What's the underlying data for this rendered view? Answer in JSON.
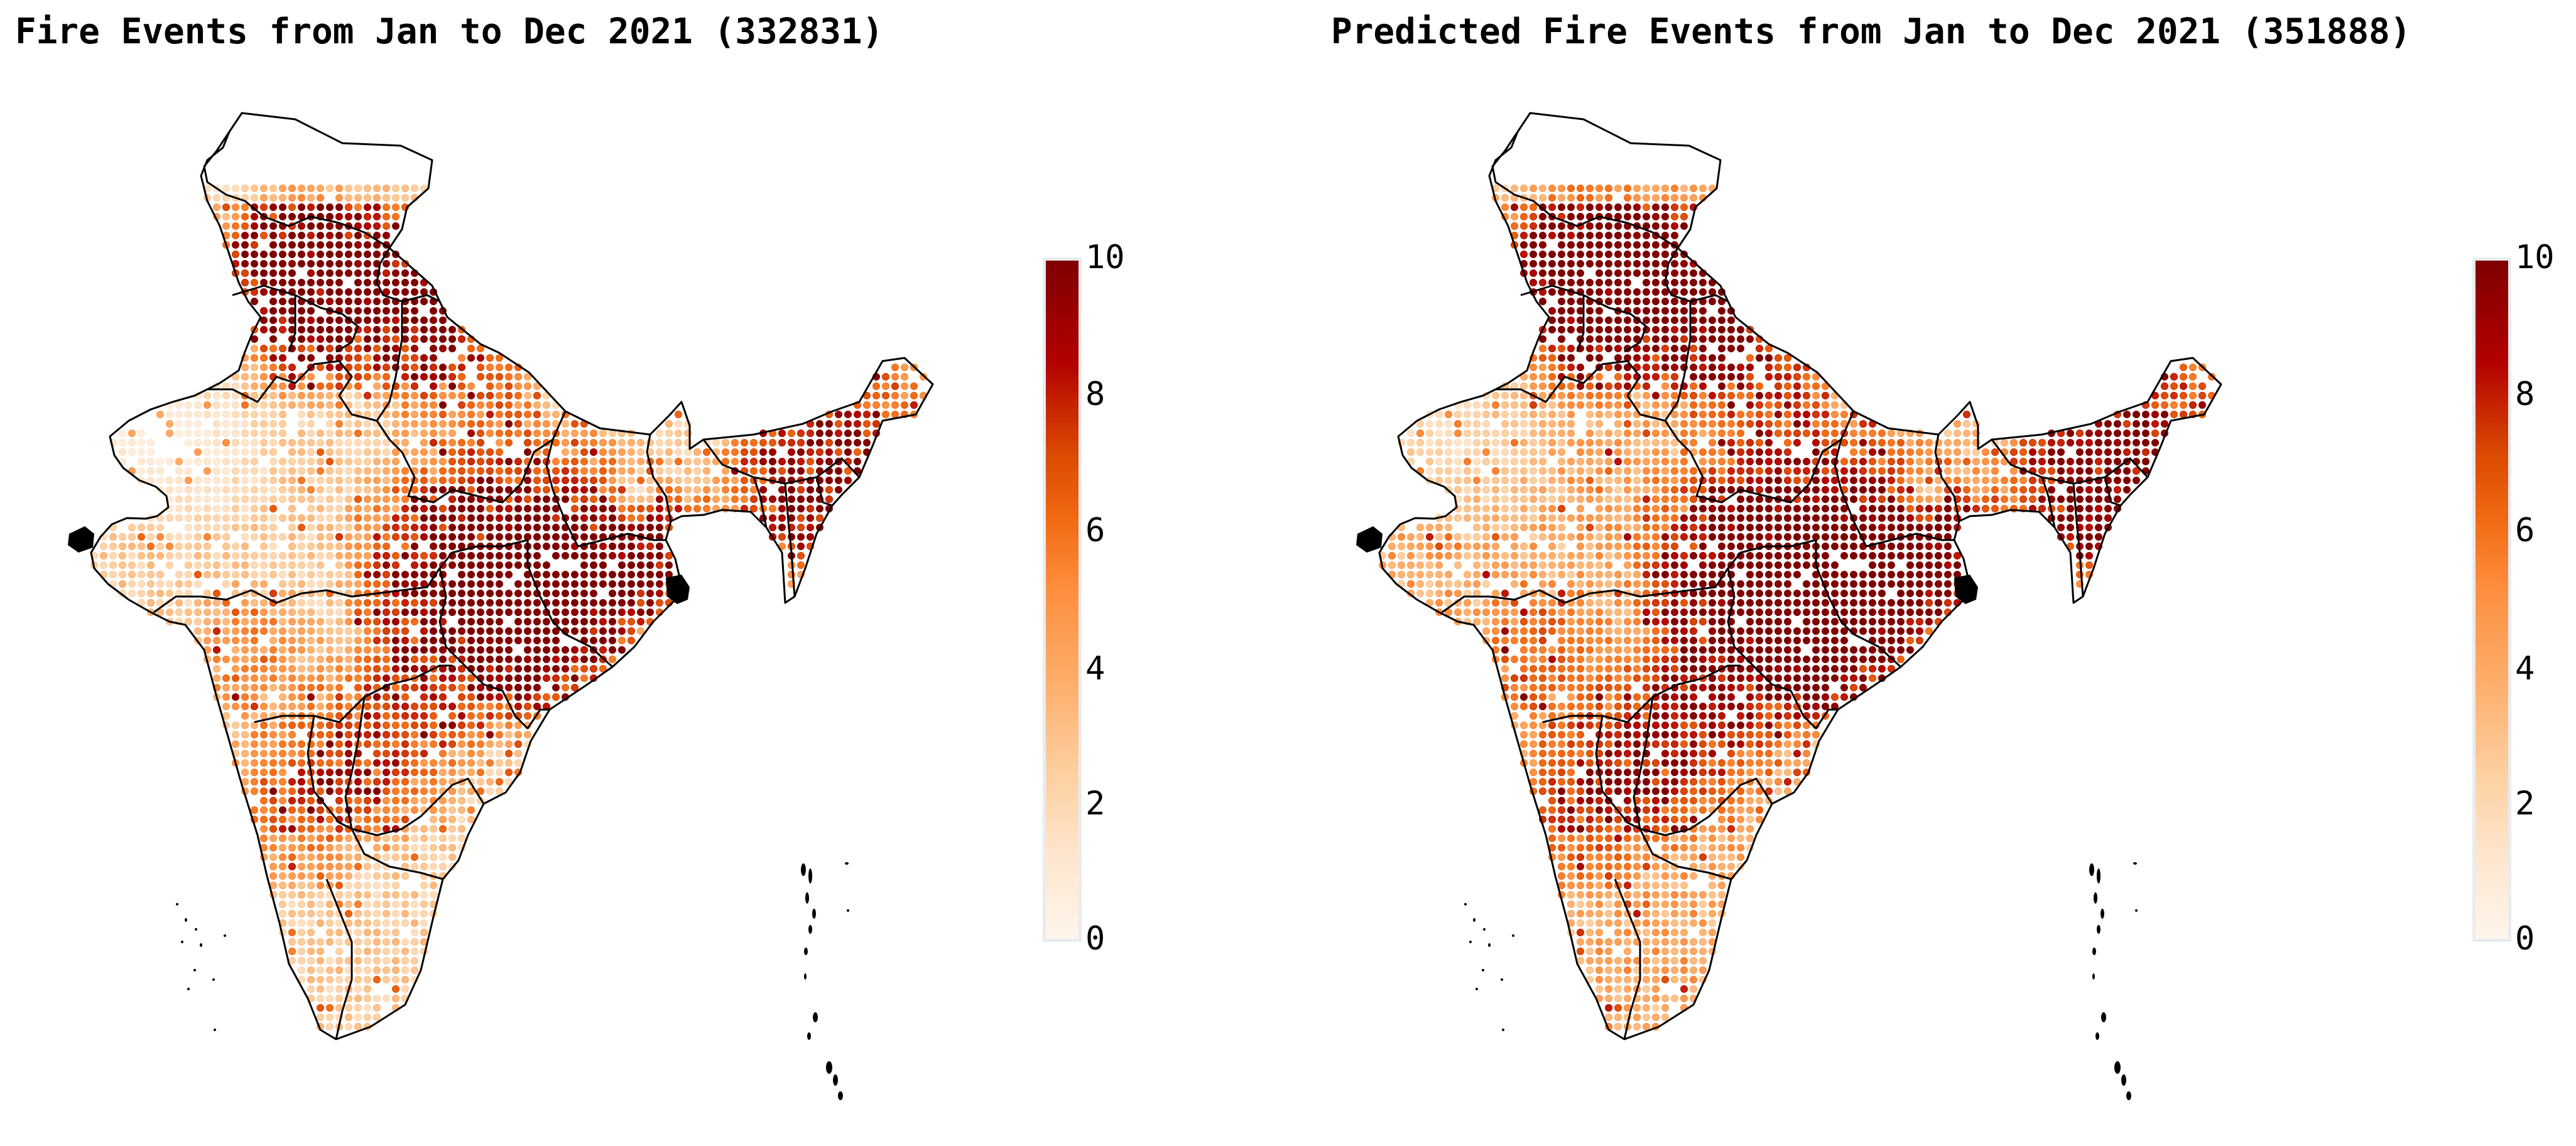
{
  "maps": [
    {
      "id": "observed",
      "title": "Fire Events from Jan to Dec 2021 (332831)",
      "colorbar": {
        "ticks": [
          "0",
          "2",
          "4",
          "6",
          "8",
          "10"
        ],
        "min": 0,
        "max": 10
      },
      "intensity_bias": 0.0
    },
    {
      "id": "predicted",
      "title": "Predicted Fire Events from Jan to Dec 2021 (351888)",
      "colorbar": {
        "ticks": [
          "0",
          "2",
          "4",
          "6",
          "8",
          "10"
        ],
        "min": 0,
        "max": 10
      },
      "intensity_bias": 1.3
    }
  ],
  "colormap": {
    "name": "OrRd",
    "stops": [
      "#fff5eb",
      "#fee6ce",
      "#fdd0a2",
      "#fdae6b",
      "#fd8d3c",
      "#f16913",
      "#d94801",
      "#b30000",
      "#7f0000"
    ]
  },
  "outline_color": "#000000"
}
